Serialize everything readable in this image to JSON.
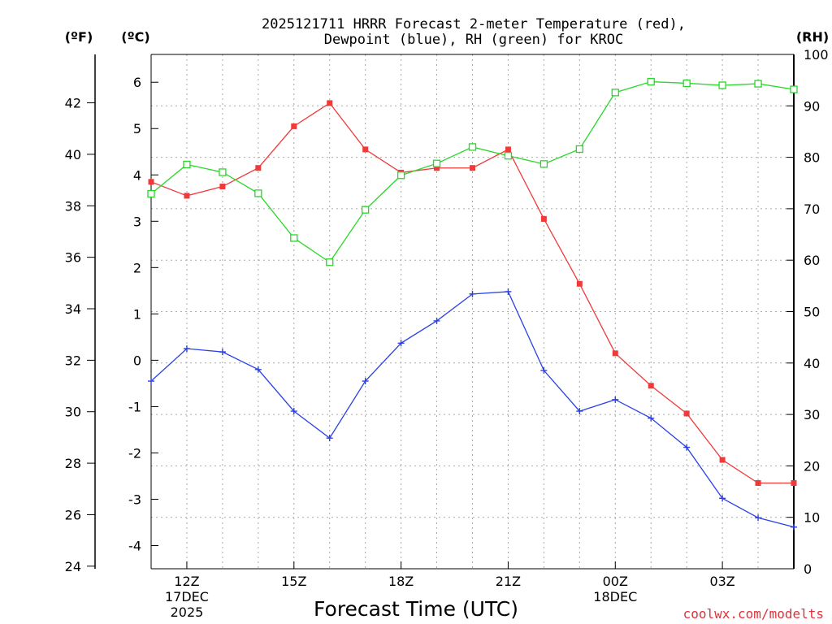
{
  "chart_data": {
    "type": "line",
    "title": [
      "2025121711 HRRR Forecast 2-meter Temperature (red),",
      "Dewpoint (blue), RH (green) for KROC"
    ],
    "xlabel": "Forecast Time (UTC)",
    "credit": "coolwx.com/modelts",
    "units": {
      "fahrenheit": "(ºF)",
      "celsius": "(ºC)",
      "rh": "(RH)"
    },
    "x_hours": [
      11,
      12,
      13,
      14,
      15,
      16,
      17,
      18,
      19,
      20,
      21,
      22,
      23,
      24,
      25,
      26,
      27,
      28,
      29
    ],
    "xlim": [
      11,
      29
    ],
    "x_ticks": [
      {
        "hour": 12,
        "lines": [
          "12Z",
          "17DEC",
          "2025"
        ]
      },
      {
        "hour": 15,
        "lines": [
          "15Z"
        ]
      },
      {
        "hour": 18,
        "lines": [
          "18Z"
        ]
      },
      {
        "hour": 21,
        "lines": [
          "21Z"
        ]
      },
      {
        "hour": 24,
        "lines": [
          "00Z",
          "18DEC"
        ]
      },
      {
        "hour": 27,
        "lines": [
          "03Z"
        ]
      }
    ],
    "celsius_axis": {
      "range": [
        -4.5,
        6.6
      ],
      "ticks": [
        -4,
        -3,
        -2,
        -1,
        0,
        1,
        2,
        3,
        4,
        5,
        6
      ]
    },
    "fahrenheit_axis": {
      "range": [
        23.9,
        43.88
      ],
      "ticks": [
        24,
        26,
        28,
        30,
        32,
        34,
        36,
        38,
        40,
        42
      ]
    },
    "rh_axis": {
      "range": [
        0,
        100
      ],
      "ticks": [
        0,
        10,
        20,
        30,
        40,
        50,
        60,
        70,
        80,
        90,
        100
      ]
    },
    "series": [
      {
        "name": "Temperature",
        "unit": "C",
        "color": "#ef3a3a",
        "marker": "filled-square",
        "values": [
          3.85,
          3.55,
          3.75,
          4.15,
          5.05,
          5.55,
          4.55,
          4.05,
          4.15,
          4.15,
          4.55,
          3.05,
          1.65,
          0.15,
          -0.55,
          -1.15,
          -2.15,
          -2.65,
          -2.65
        ]
      },
      {
        "name": "Dewpoint",
        "unit": "C",
        "color": "#2a41e6",
        "marker": "plus",
        "values": [
          -0.45,
          0.25,
          0.18,
          -0.2,
          -1.1,
          -1.68,
          -0.45,
          0.37,
          0.85,
          1.43,
          1.48,
          -0.22,
          -1.1,
          -0.85,
          -1.25,
          -1.88,
          -2.98,
          -3.4,
          -3.6
        ]
      },
      {
        "name": "RH",
        "unit": "%",
        "color": "#27d827",
        "marker": "open-square",
        "values": [
          72.9,
          78.6,
          77.1,
          73.0,
          64.3,
          59.6,
          69.8,
          76.5,
          78.8,
          82.0,
          80.3,
          78.7,
          81.6,
          92.6,
          94.7,
          94.4,
          94.0,
          94.3,
          93.2
        ]
      }
    ]
  }
}
